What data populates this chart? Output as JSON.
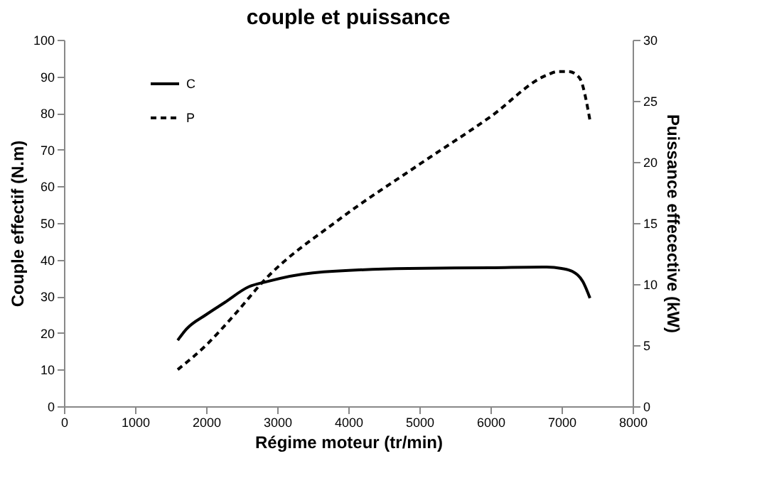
{
  "chart_data": {
    "type": "line",
    "title": "couple et puissance",
    "xlabel": "Régime moteur (tr/min)",
    "ylabel": "Couple effectif (N.m)",
    "y2label": "Puissance effecective (kW)",
    "xlim": [
      0,
      8000
    ],
    "xticks": [
      0,
      1000,
      2000,
      3000,
      4000,
      5000,
      6000,
      7000,
      8000
    ],
    "ylim": [
      0,
      100
    ],
    "yticks": [
      0,
      10,
      20,
      30,
      40,
      50,
      60,
      70,
      80,
      90,
      100
    ],
    "y2lim": [
      0,
      30
    ],
    "y2ticks": [
      0,
      5,
      10,
      15,
      20,
      25,
      30
    ],
    "grid": false,
    "legend": "top left",
    "marker": "none",
    "series": [
      {
        "name": "C",
        "color": "#000000",
        "line_style": "solid",
        "x": [
          1600,
          1720,
          2000,
          2260,
          2600,
          2850,
          3500,
          4850,
          6000,
          6790,
          7000,
          7150,
          7300,
          7400
        ],
        "values": [
          18,
          21,
          25,
          28.3,
          32.6,
          34,
          36.4,
          37.6,
          37.8,
          38,
          37.6,
          36.8,
          34,
          29.5
        ]
      },
      {
        "name": "P",
        "color": "#000000",
        "line_style": "dashed",
        "axis": "y2",
        "x": [
          1600,
          2000,
          2400,
          2800,
          3850,
          5000,
          6000,
          6790,
          6950,
          7100,
          7250,
          7400
        ],
        "values": [
          3,
          5,
          7.5,
          10.2,
          15.2,
          19.8,
          23.7,
          27.1,
          27.4,
          27.4,
          26.9,
          23.4
        ]
      }
    ]
  }
}
